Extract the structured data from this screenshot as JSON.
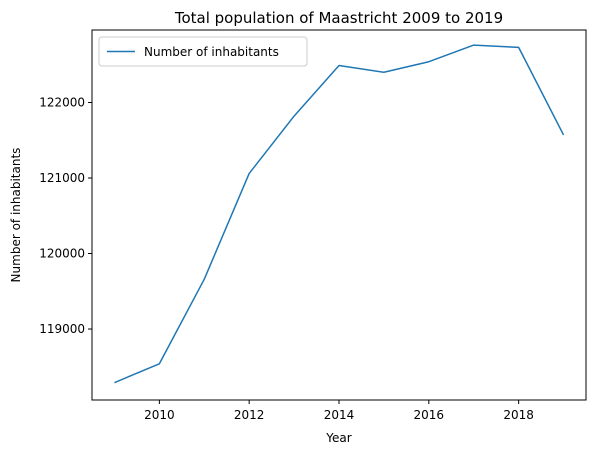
{
  "chart_data": {
    "type": "line",
    "title": "Total population of Maastricht 2009 to 2019",
    "xlabel": "Year",
    "ylabel": "Number of inhabitants",
    "x": [
      2009,
      2010,
      2011,
      2012,
      2013,
      2014,
      2015,
      2016,
      2017,
      2018,
      2019
    ],
    "series": [
      {
        "name": "Number of inhabitants",
        "color": "#1f77b4",
        "values": [
          118290,
          118540,
          119660,
          121060,
          121820,
          122490,
          122400,
          122540,
          122760,
          122730,
          121570
        ]
      }
    ],
    "xlim": [
      2008.5,
      2019.5
    ],
    "ylim": [
      118060,
      122960
    ],
    "xticks": [
      2010,
      2012,
      2014,
      2016,
      2018
    ],
    "yticks": [
      119000,
      120000,
      121000,
      122000
    ],
    "grid": false,
    "legend": "upper-left"
  }
}
